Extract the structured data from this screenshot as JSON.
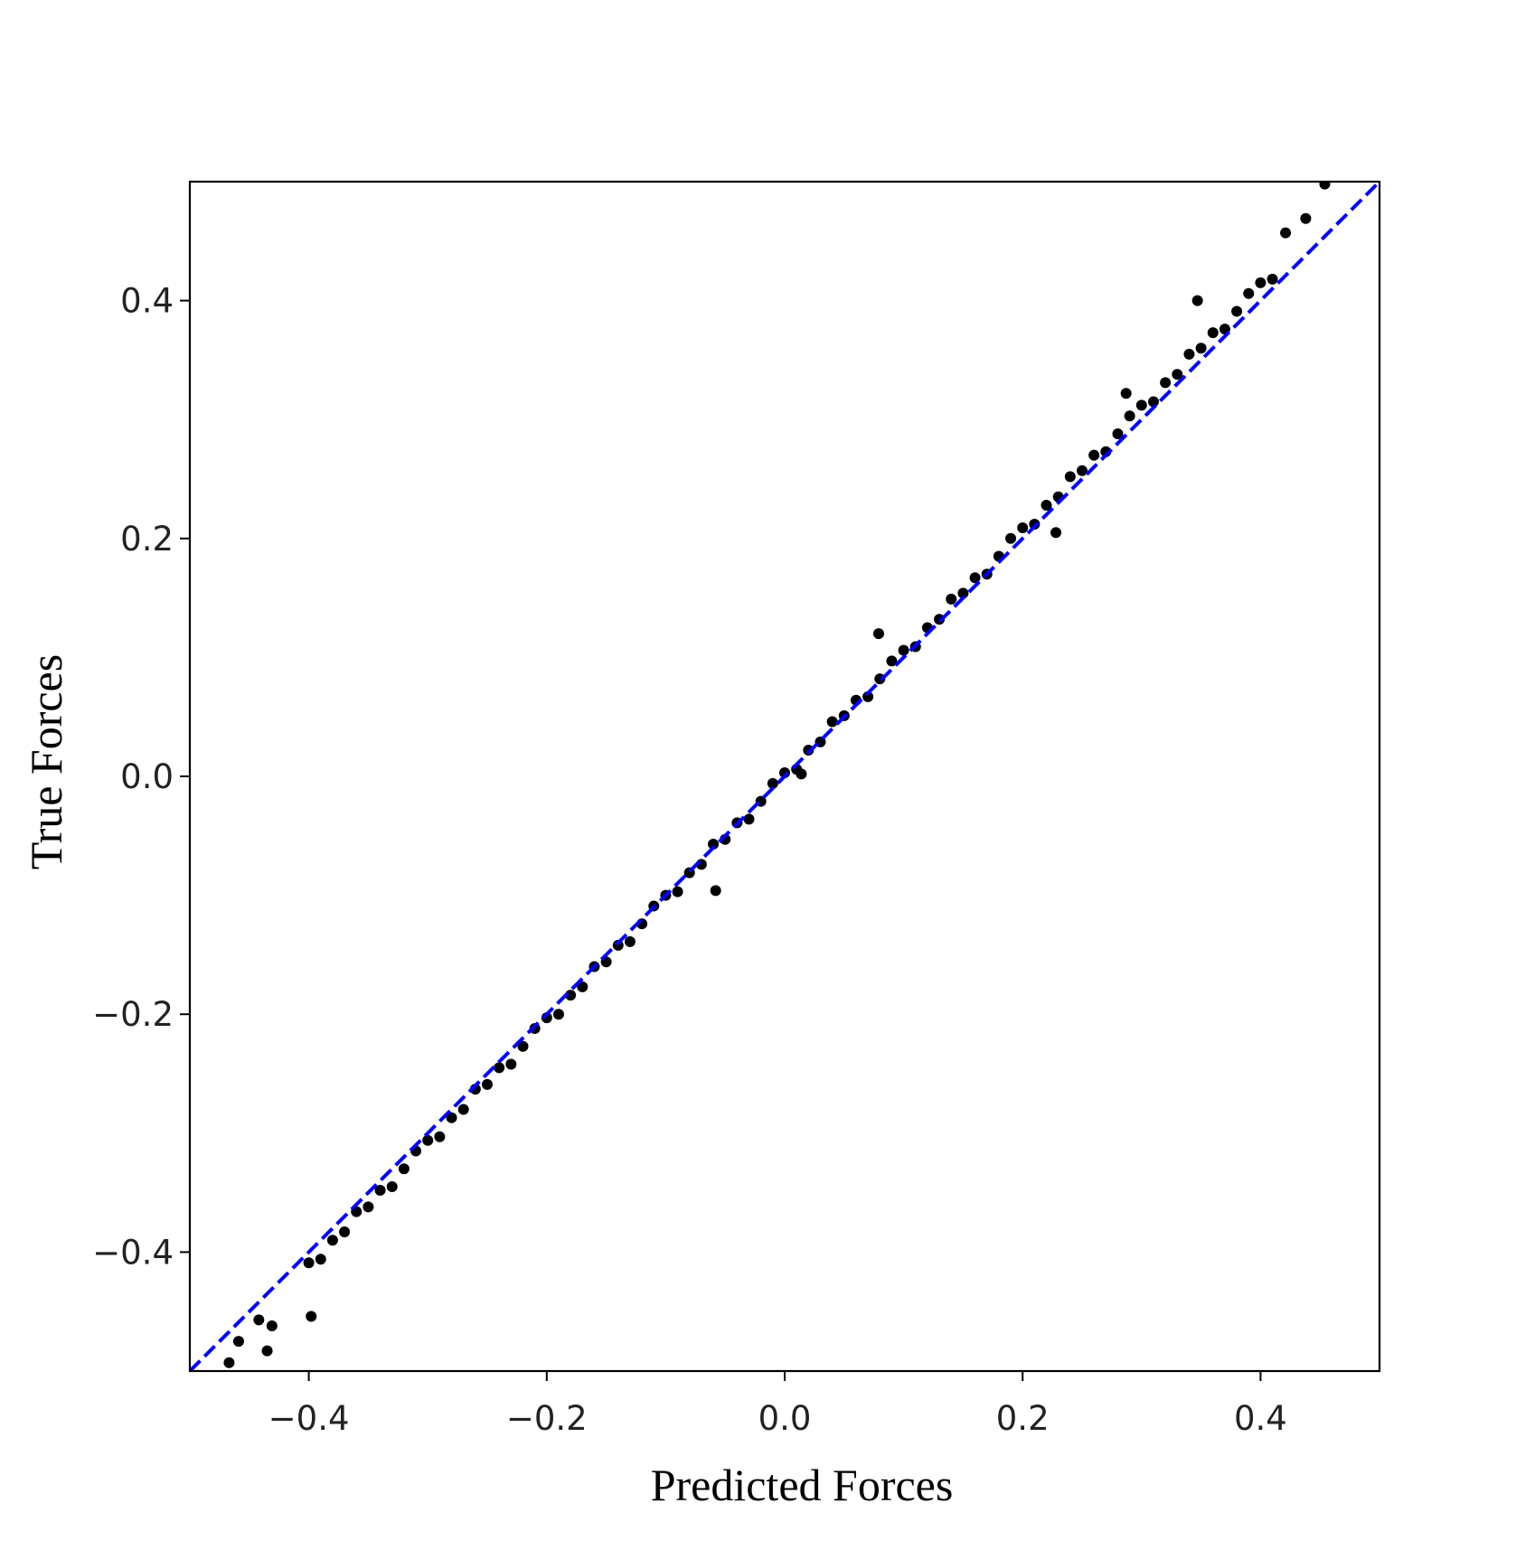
{
  "chart_data": {
    "type": "scatter",
    "xlabel": "Predicted Forces",
    "ylabel": "True Forces",
    "xlim": [
      -0.5,
      0.5
    ],
    "ylim": [
      -0.5,
      0.5
    ],
    "xticks": [
      {
        "value": -0.4,
        "label": "−0.4"
      },
      {
        "value": -0.2,
        "label": "−0.2"
      },
      {
        "value": 0,
        "label": "0.0"
      },
      0.2,
      0.4
    ],
    "yticks": [
      {
        "value": -0.4,
        "label": "−0.4"
      },
      {
        "value": -0.2,
        "label": "−0.2"
      },
      {
        "value": 0,
        "label": "0.0"
      },
      0.2,
      0.4
    ],
    "x": [
      -0.4,
      -0.39,
      -0.38,
      -0.37,
      -0.36,
      -0.35,
      -0.34,
      -0.33,
      -0.32,
      -0.31,
      -0.3,
      -0.29,
      -0.28,
      -0.27,
      -0.26,
      -0.25,
      -0.24,
      -0.23,
      -0.22,
      -0.21,
      -0.2,
      -0.19,
      -0.18,
      -0.17,
      -0.16,
      -0.15,
      -0.14,
      -0.13,
      -0.12,
      -0.11,
      -0.1,
      -0.09,
      -0.08,
      -0.07,
      -0.06,
      -0.05,
      -0.04,
      -0.03,
      -0.02,
      -0.01,
      0.0,
      0.01,
      0.02,
      0.03,
      0.04,
      0.05,
      0.06,
      0.07,
      0.08,
      0.09,
      0.1,
      0.11,
      0.12,
      0.13,
      0.14,
      0.15,
      0.16,
      0.17,
      0.18,
      0.19,
      0.2,
      0.21,
      0.22,
      0.23,
      0.24,
      0.25,
      0.26,
      0.27,
      0.28,
      0.29,
      0.3,
      0.31,
      0.32,
      0.33,
      0.34,
      0.35,
      0.36,
      0.37,
      0.38,
      0.39,
      0.4,
      0.41,
      0.347,
      0.228,
      0.079,
      -0.058,
      -0.398,
      -0.467,
      -0.435,
      -0.459,
      -0.442,
      -0.431,
      0.454,
      0.438,
      0.421,
      0.287,
      0.014
    ],
    "series": [
      {
        "color": "#000000",
        "values": [
          -0.409,
          -0.406,
          -0.39,
          -0.383,
          -0.366,
          -0.362,
          -0.348,
          -0.345,
          -0.33,
          -0.315,
          -0.306,
          -0.303,
          -0.287,
          -0.28,
          -0.263,
          -0.259,
          -0.245,
          -0.242,
          -0.227,
          -0.212,
          -0.203,
          -0.2,
          -0.184,
          -0.177,
          -0.16,
          -0.156,
          -0.142,
          -0.139,
          -0.124,
          -0.109,
          -0.1,
          -0.097,
          -0.081,
          -0.074,
          -0.057,
          -0.053,
          -0.039,
          -0.036,
          -0.021,
          -0.006,
          0.003,
          0.006,
          0.022,
          0.029,
          0.046,
          0.051,
          0.064,
          0.067,
          0.082,
          0.097,
          0.106,
          0.109,
          0.125,
          0.132,
          0.149,
          0.154,
          0.167,
          0.17,
          0.185,
          0.2,
          0.209,
          0.212,
          0.228,
          0.235,
          0.252,
          0.257,
          0.27,
          0.273,
          0.288,
          0.303,
          0.312,
          0.315,
          0.331,
          0.338,
          0.355,
          0.36,
          0.373,
          0.376,
          0.391,
          0.406,
          0.415,
          0.418,
          0.4,
          0.205,
          0.12,
          -0.096,
          -0.454,
          -0.493,
          -0.483,
          -0.475,
          -0.457,
          -0.462,
          0.498,
          0.469,
          0.457,
          0.322,
          0.002
        ]
      }
    ],
    "reference_line": {
      "x": [
        -0.5,
        0.5
      ],
      "values": [
        -0.5,
        0.5
      ],
      "color": "#0000ff",
      "dashed": true
    }
  }
}
